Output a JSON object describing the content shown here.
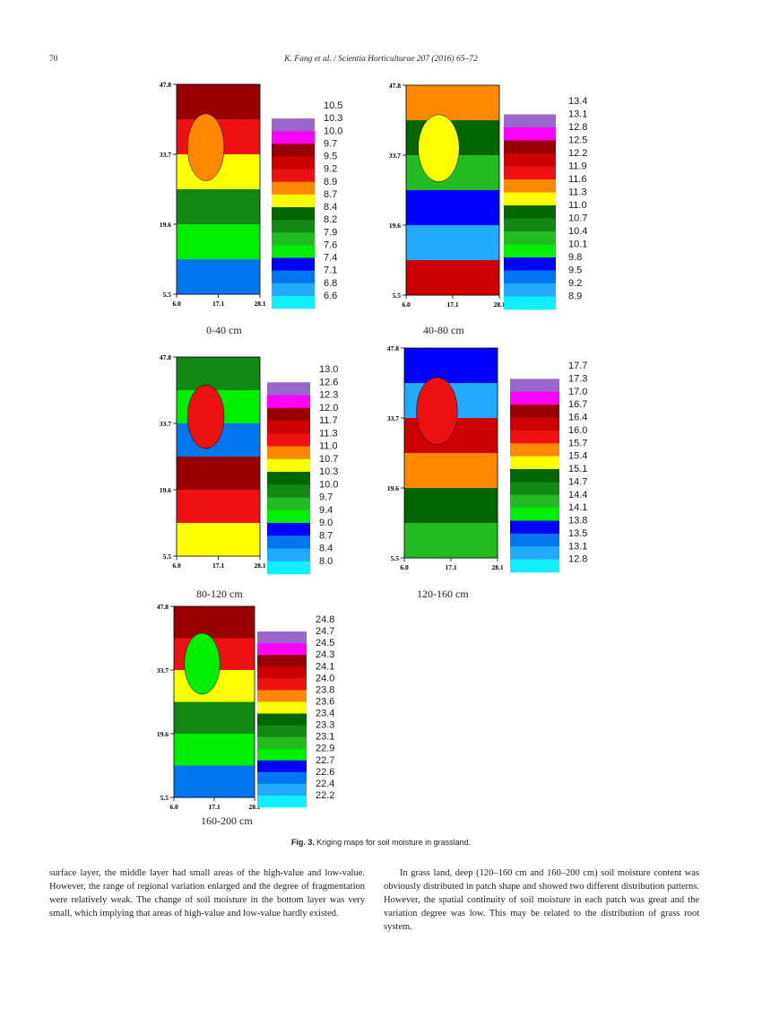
{
  "header": {
    "page_number": "70",
    "journal": "K. Fang et al. / Scientia Horticulturae 207 (2016) 65–72"
  },
  "axes": {
    "y_ticks": [
      "47.8",
      "33.7",
      "19.6",
      "5.5"
    ],
    "x_ticks": [
      "6.0",
      "17.1",
      "28.1"
    ]
  },
  "panels": [
    {
      "title": "0-40 cm",
      "legend_values": [
        "10.5",
        "10.3",
        "10.0",
        "9.7",
        "9.5",
        "9.2",
        "8.9",
        "8.7",
        "8.4",
        "8.2",
        "7.9",
        "7.6",
        "7.4",
        "7.1",
        "6.8",
        "6.6"
      ],
      "legend_colors": [
        "#ffffff",
        "#9966cc",
        "#ff00ff",
        "#990000",
        "#cc0000",
        "#ee1111",
        "#ff8800",
        "#ffff00",
        "#006600",
        "#118811",
        "#22bb22",
        "#00ee00",
        "#0000ff",
        "#0077ee",
        "#22aaff",
        "#11eeff"
      ],
      "mean_level": 8.6,
      "color": "#ff8800"
    },
    {
      "title": "40-80 cm",
      "legend_values": [
        "13.4",
        "13.1",
        "12.8",
        "12.5",
        "12.2",
        "11.9",
        "11.6",
        "11.3",
        "11.0",
        "10.7",
        "10.4",
        "10.1",
        "9.8",
        "9.5",
        "9.2",
        "8.9"
      ],
      "legend_colors": [
        "#ffffff",
        "#9966cc",
        "#ff00ff",
        "#990000",
        "#cc0000",
        "#ee1111",
        "#ff8800",
        "#ffff00",
        "#006600",
        "#118811",
        "#22bb22",
        "#00ee00",
        "#0000ff",
        "#0077ee",
        "#22aaff",
        "#11eeff"
      ],
      "mean_level": 11.2,
      "color": "#ffff00"
    },
    {
      "title": "80-120 cm",
      "legend_values": [
        "13.0",
        "12.6",
        "12.3",
        "12.0",
        "11.7",
        "11.3",
        "11.0",
        "10.7",
        "10.3",
        "10.0",
        "9.7",
        "9.4",
        "9.0",
        "8.7",
        "8.4",
        "8.0"
      ],
      "legend_colors": [
        "#ffffff",
        "#9966cc",
        "#ff00ff",
        "#990000",
        "#cc0000",
        "#ee1111",
        "#ff8800",
        "#ffff00",
        "#006600",
        "#118811",
        "#22bb22",
        "#00ee00",
        "#0000ff",
        "#0077ee",
        "#22aaff",
        "#11eeff"
      ],
      "mean_level": 11.0,
      "color": "#ee1111"
    },
    {
      "title": "120-160 cm",
      "legend_values": [
        "17.7",
        "17.3",
        "17.0",
        "16.7",
        "16.4",
        "16.0",
        "15.7",
        "15.4",
        "15.1",
        "14.7",
        "14.4",
        "14.1",
        "13.8",
        "13.5",
        "13.1",
        "12.8"
      ],
      "legend_colors": [
        "#ffffff",
        "#9966cc",
        "#ff00ff",
        "#990000",
        "#cc0000",
        "#ee1111",
        "#ff8800",
        "#ffff00",
        "#006600",
        "#118811",
        "#22bb22",
        "#00ee00",
        "#0000ff",
        "#0077ee",
        "#22aaff",
        "#11eeff"
      ],
      "mean_level": 15.9,
      "color": "#ee1111"
    },
    {
      "title": "160-200 cm",
      "legend_values": [
        "24.8",
        "24.7",
        "24.5",
        "24.3",
        "24.1",
        "24.0",
        "23.8",
        "23.6",
        "23.4",
        "23.3",
        "23.1",
        "22.9",
        "22.7",
        "22.6",
        "22.4",
        "22.2"
      ],
      "legend_colors": [
        "#ffffff",
        "#9966cc",
        "#ff00ff",
        "#990000",
        "#cc0000",
        "#ee1111",
        "#ff8800",
        "#ffff00",
        "#006600",
        "#118811",
        "#22bb22",
        "#00ee00",
        "#0000ff",
        "#0077ee",
        "#22aaff",
        "#11eeff"
      ],
      "mean_level": 23.2,
      "color": "#00ee00"
    }
  ],
  "caption": {
    "label": "Fig. 3.",
    "text": "Kriging maps for soil moisture in grassland."
  },
  "body": {
    "left": "surface layer, the middle layer had small areas of the high-value and low-value. However, the range of regional variation enlarged and the degree of fragmentation were relatively weak. The change of soil moisture in the bottom layer was very small, which implying that areas of high-value and low-value hardly existed.",
    "right": "In grass land, deep (120–160 cm and 160–200 cm) soil moisture content was obviously distributed in patch shape and showed two different distribution patterns. However, the spatial continuity of soil moisture in each patch was great and the variation degree was low. This may be related to the distribution of grass root system."
  }
}
